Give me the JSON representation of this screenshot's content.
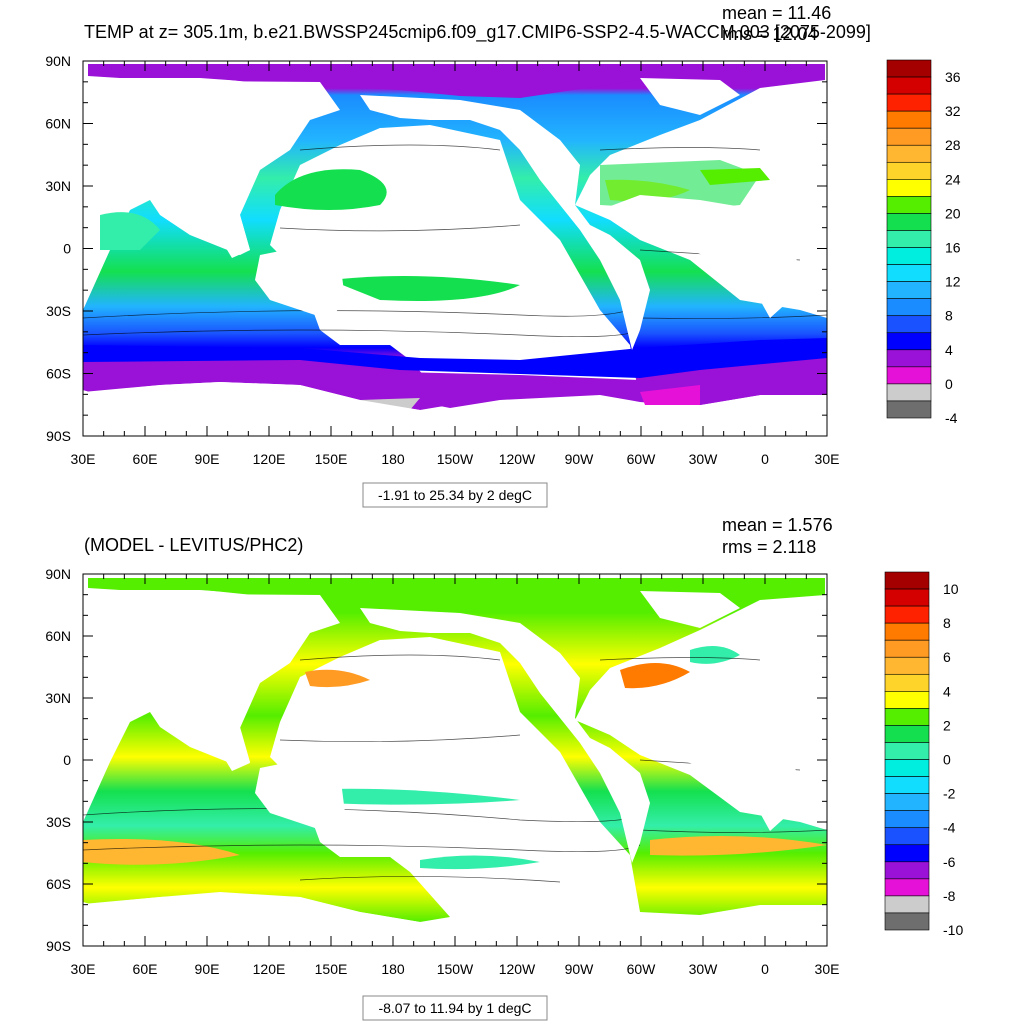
{
  "chart_data": [
    {
      "type": "heatmap",
      "title": "TEMP at z= 305.1m, b.e21.BWSSP245cmip6.f09_g17.CMIP6-SSP2-4.5-WACCM.003 [2075-2099]",
      "stats": {
        "mean": "mean = 11.46",
        "rms": "rms = 12.04"
      },
      "range_label": "-1.91 to 25.34 by 2 degC",
      "x_ticks": [
        "30E",
        "60E",
        "90E",
        "120E",
        "150E",
        "180",
        "150W",
        "120W",
        "90W",
        "60W",
        "30W",
        "0",
        "30E"
      ],
      "y_ticks": [
        "90N",
        "60N",
        "30N",
        "0",
        "30S",
        "60S",
        "90S"
      ],
      "colorbar": {
        "labels": [
          "36",
          "32",
          "28",
          "24",
          "20",
          "16",
          "12",
          "8",
          "4",
          "0",
          "-4"
        ],
        "colors": [
          "#a50000",
          "#d40000",
          "#ff2200",
          "#ff7b00",
          "#ff9a22",
          "#ffb631",
          "#ffd42a",
          "#ffff00",
          "#55ee00",
          "#14e04f",
          "#33eeaa",
          "#00eee0",
          "#11ddff",
          "#22b4ff",
          "#1a8cff",
          "#1a52ff",
          "#0000ff",
          "#9a11d8",
          "#e611d8",
          "#cccccc",
          "#6e6e6e"
        ]
      }
    },
    {
      "type": "heatmap",
      "title": "(MODEL - LEVITUS/PHC2)",
      "stats": {
        "mean": "mean = 1.576",
        "rms": "rms = 2.118"
      },
      "range_label": "-8.07 to 11.94 by 1 degC",
      "x_ticks": [
        "30E",
        "60E",
        "90E",
        "120E",
        "150E",
        "180",
        "150W",
        "120W",
        "90W",
        "60W",
        "30W",
        "0",
        "30E"
      ],
      "y_ticks": [
        "90N",
        "60N",
        "30N",
        "0",
        "30S",
        "60S",
        "90S"
      ],
      "colorbar": {
        "labels": [
          "10",
          "8",
          "6",
          "4",
          "2",
          "0",
          "-2",
          "-4",
          "-6",
          "-8",
          "-10"
        ],
        "colors": [
          "#a50000",
          "#d40000",
          "#ff2200",
          "#ff7b00",
          "#ff9a22",
          "#ffb631",
          "#ffd42a",
          "#ffff00",
          "#55ee00",
          "#14e04f",
          "#33eeaa",
          "#00eee0",
          "#11ddff",
          "#22b4ff",
          "#1a8cff",
          "#1a52ff",
          "#0000ff",
          "#9a11d8",
          "#e611d8",
          "#cccccc",
          "#6e6e6e"
        ]
      }
    }
  ]
}
